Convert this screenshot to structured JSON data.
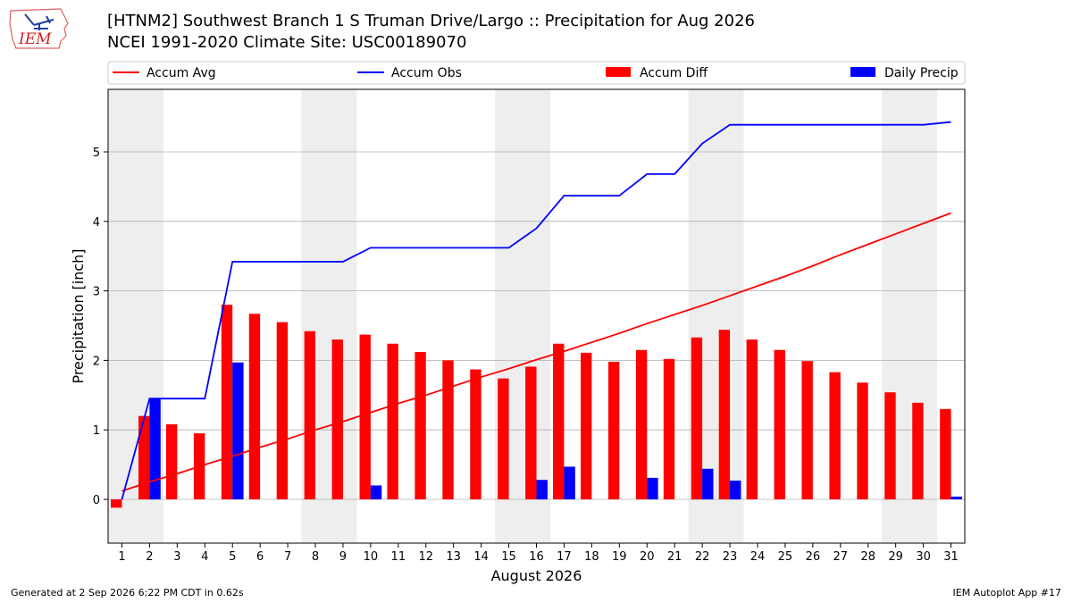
{
  "header": {
    "logo_text": "IEM",
    "title": "[HTNM2] Southwest Branch 1 S Truman Drive/Largo :: Precipitation for Aug 2026",
    "subtitle": "NCEI 1991-2020 Climate Site: USC00189070"
  },
  "footer": {
    "generated": "Generated at 2 Sep 2026 6:22 PM CDT in 0.62s",
    "app": "IEM Autoplot App #17"
  },
  "colors": {
    "avg": "#ff0000",
    "obs": "#0000ff",
    "diff": "#ff0000",
    "daily": "#0000ff",
    "weekend_band": "#eeeeee",
    "grid": "#b0b0b0"
  },
  "chart_data": {
    "type": "bar",
    "xlabel": "August 2026",
    "ylabel": "Precipitation [inch]",
    "x": [
      1,
      2,
      3,
      4,
      5,
      6,
      7,
      8,
      9,
      10,
      11,
      12,
      13,
      14,
      15,
      16,
      17,
      18,
      19,
      20,
      21,
      22,
      23,
      24,
      25,
      26,
      27,
      28,
      29,
      30,
      31
    ],
    "xlim": [
      0.5,
      31.5
    ],
    "ylim": [
      -0.63,
      5.9
    ],
    "yticks": [
      0,
      1,
      2,
      3,
      4,
      5
    ],
    "grid": "horizontal",
    "legend_position": "top",
    "weekend_days": [
      1,
      2,
      8,
      9,
      15,
      16,
      22,
      23,
      29,
      30
    ],
    "series": [
      {
        "name": "Accum Avg",
        "kind": "line",
        "values": [
          0.12,
          0.25,
          0.37,
          0.5,
          0.62,
          0.75,
          0.87,
          1.0,
          1.12,
          1.25,
          1.38,
          1.5,
          1.63,
          1.76,
          1.88,
          2.01,
          2.13,
          2.26,
          2.39,
          2.53,
          2.66,
          2.79,
          2.93,
          3.07,
          3.21,
          3.36,
          3.52,
          3.67,
          3.82,
          3.97,
          4.12
        ]
      },
      {
        "name": "Accum Obs",
        "kind": "line",
        "values": [
          0.0,
          1.45,
          1.45,
          1.45,
          3.42,
          3.42,
          3.42,
          3.42,
          3.42,
          3.62,
          3.62,
          3.62,
          3.62,
          3.62,
          3.62,
          3.9,
          4.37,
          4.37,
          4.37,
          4.68,
          4.68,
          5.12,
          5.39,
          5.39,
          5.39,
          5.39,
          5.39,
          5.39,
          5.39,
          5.39,
          5.43
        ]
      },
      {
        "name": "Accum Diff",
        "kind": "bar",
        "values": [
          -0.12,
          1.2,
          1.08,
          0.95,
          2.8,
          2.67,
          2.55,
          2.42,
          2.3,
          2.37,
          2.24,
          2.12,
          2.0,
          1.87,
          1.74,
          1.91,
          2.24,
          2.11,
          1.98,
          2.15,
          2.02,
          2.33,
          2.44,
          2.3,
          2.15,
          1.99,
          1.83,
          1.68,
          1.54,
          1.39,
          1.3
        ]
      },
      {
        "name": "Daily Precip",
        "kind": "bar",
        "values": [
          0.0,
          1.45,
          0.0,
          0.0,
          1.97,
          0.0,
          0.0,
          0.0,
          0.0,
          0.2,
          0.0,
          0.0,
          0.0,
          0.0,
          0.0,
          0.28,
          0.47,
          0.0,
          0.0,
          0.31,
          0.0,
          0.44,
          0.27,
          0.0,
          0.0,
          0.0,
          0.0,
          0.0,
          0.0,
          0.0,
          0.04
        ]
      }
    ]
  }
}
